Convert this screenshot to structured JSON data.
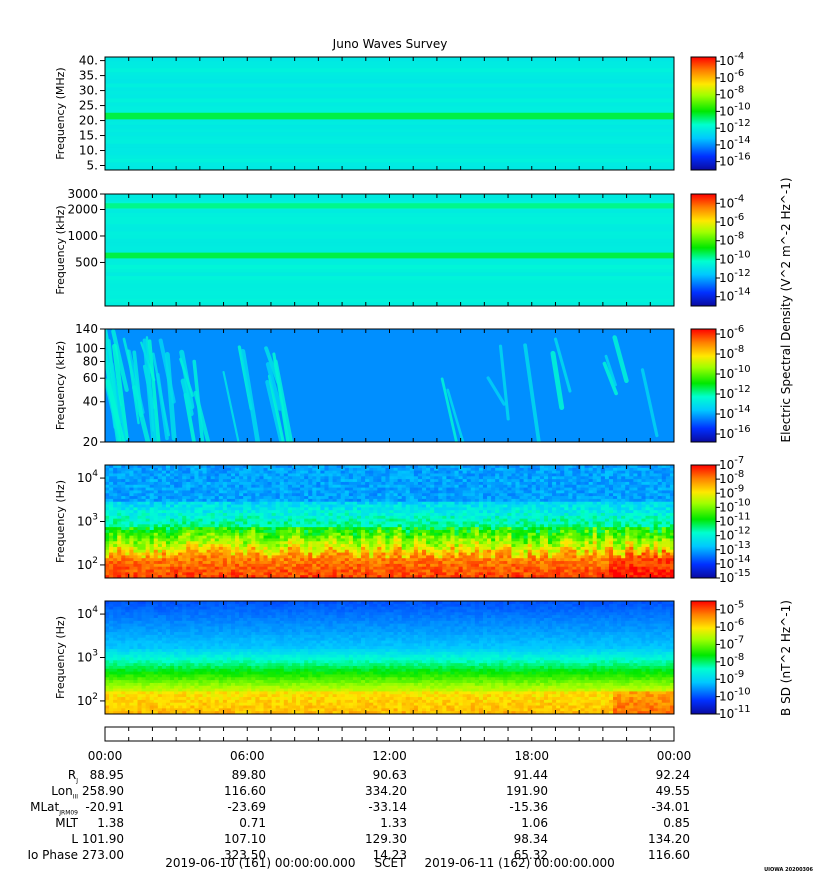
{
  "title": "Juno Waves Survey",
  "chart_data": {
    "type": "heatmap",
    "title": "Juno Waves Survey",
    "panels": [
      {
        "name": "panel-1",
        "ylabel": "Frequency (MHz)",
        "yticks": [
          "40.",
          "35.",
          "30.",
          "25.",
          "20.",
          "15.",
          "10.",
          "5."
        ],
        "ytick_values": [
          40,
          35,
          30,
          25,
          20,
          15,
          10,
          5
        ],
        "ylim": [
          3.5,
          41.2
        ],
        "yscale": "linear",
        "colorbar_ticks": [
          "-4",
          "-6",
          "-8",
          "-10",
          "-12",
          "-14",
          "-16"
        ],
        "colorbar_range_exp": [
          -17,
          -3.5
        ],
        "colormap": "rainbow",
        "background_level": 0.36,
        "bands": [
          {
            "y": 21.5,
            "width": 2.2,
            "level": 0.48
          }
        ]
      },
      {
        "name": "panel-2",
        "ylabel": "Frequency (kHz)",
        "yticks": [
          "3000",
          "2000",
          "1000",
          "500"
        ],
        "ytick_values": [
          3000,
          2000,
          1000,
          500
        ],
        "ylim": [
          160,
          3000
        ],
        "yscale": "log",
        "colorbar_ticks": [
          "-4",
          "-6",
          "-8",
          "-10",
          "-12",
          "-14"
        ],
        "colorbar_range_exp": [
          -15,
          -3
        ],
        "colormap": "rainbow",
        "background_level": 0.37,
        "bands": [
          {
            "y": 2200,
            "width": 300,
            "level": 0.44
          },
          {
            "y": 600,
            "width": 90,
            "level": 0.48
          }
        ]
      },
      {
        "name": "panel-3",
        "ylabel": "Frequency (kHz)",
        "yticks": [
          "140",
          "100",
          "80",
          "60",
          "40",
          "20"
        ],
        "ytick_values": [
          140,
          100,
          80,
          60,
          40,
          20
        ],
        "ylim": [
          20,
          140
        ],
        "yscale": "log",
        "colorbar_ticks": [
          "-6",
          "-8",
          "-10",
          "-12",
          "-14",
          "-16"
        ],
        "colorbar_range_exp": [
          -16.8,
          -5.5
        ],
        "colormap": "rainbow",
        "background_level": 0.22,
        "bands": []
      },
      {
        "name": "panel-4",
        "ylabel": "Frequency (Hz)",
        "yticks": [
          "10^4",
          "10^3",
          "10^2"
        ],
        "ytick_values": [
          10000,
          1000,
          100
        ],
        "ylim": [
          50,
          20000
        ],
        "yscale": "log",
        "colorbar_ticks": [
          "-7",
          "-8",
          "-9",
          "-10",
          "-11",
          "-12",
          "-13",
          "-14",
          "-15"
        ],
        "colorbar_range_exp": [
          -15,
          -7
        ],
        "colormap": "rainbow",
        "background_level": 0.2,
        "bands": []
      },
      {
        "name": "panel-5",
        "ylabel": "Frequency (Hz)",
        "yticks": [
          "10^4",
          "10^3",
          "10^2"
        ],
        "ytick_values": [
          10000,
          1000,
          100
        ],
        "ylim": [
          50,
          20000
        ],
        "yscale": "log",
        "colorbar_ticks": [
          "-5",
          "-6",
          "-7",
          "-8",
          "-9",
          "-10",
          "-11"
        ],
        "colorbar_range_exp": [
          -11,
          -4.5
        ],
        "colormap": "rainbow",
        "background_level": 0.15,
        "bands": []
      }
    ],
    "colorbar_labels": {
      "electric": "Electric Spectral Density (V^2 m^-2 Hz^-1)",
      "magnetic": "B SD (nT^2 Hz^-1)"
    },
    "colorbar_tick_base": "10",
    "xlim_hours": [
      0,
      24
    ],
    "x_ticks": [
      "00:00",
      "06:00",
      "12:00",
      "18:00",
      "00:00"
    ],
    "x_tick_hours": [
      0,
      6,
      12,
      18,
      24
    ]
  },
  "ephemeris": [
    {
      "label": "R",
      "sub": "J",
      "values": [
        "88.95",
        "89.80",
        "90.63",
        "91.44",
        "92.24"
      ]
    },
    {
      "label": "Lon",
      "sub": "III",
      "values": [
        "258.90",
        "116.60",
        "334.20",
        "191.90",
        "49.55"
      ]
    },
    {
      "label": "MLat",
      "sub": "JRM09",
      "values": [
        "-20.91",
        "-23.69",
        "-33.14",
        "-15.36",
        "-34.01"
      ]
    },
    {
      "label": "MLT",
      "sub": "",
      "values": [
        "1.38",
        "0.71",
        "1.33",
        "1.06",
        "0.85"
      ]
    },
    {
      "label": "L",
      "sub": "",
      "values": [
        "101.90",
        "107.10",
        "129.30",
        "98.34",
        "134.20"
      ]
    },
    {
      "label": "Io Phase",
      "sub": "",
      "values": [
        "273.00",
        "323.50",
        "14.23",
        "65.32",
        "116.60"
      ]
    }
  ],
  "footer": {
    "start": "2019-06-10 (161) 00:00:00.000",
    "scet": "SCET",
    "end": "2019-06-11 (162) 00:00:00.000"
  },
  "stamp": "UIOWA 20200306"
}
